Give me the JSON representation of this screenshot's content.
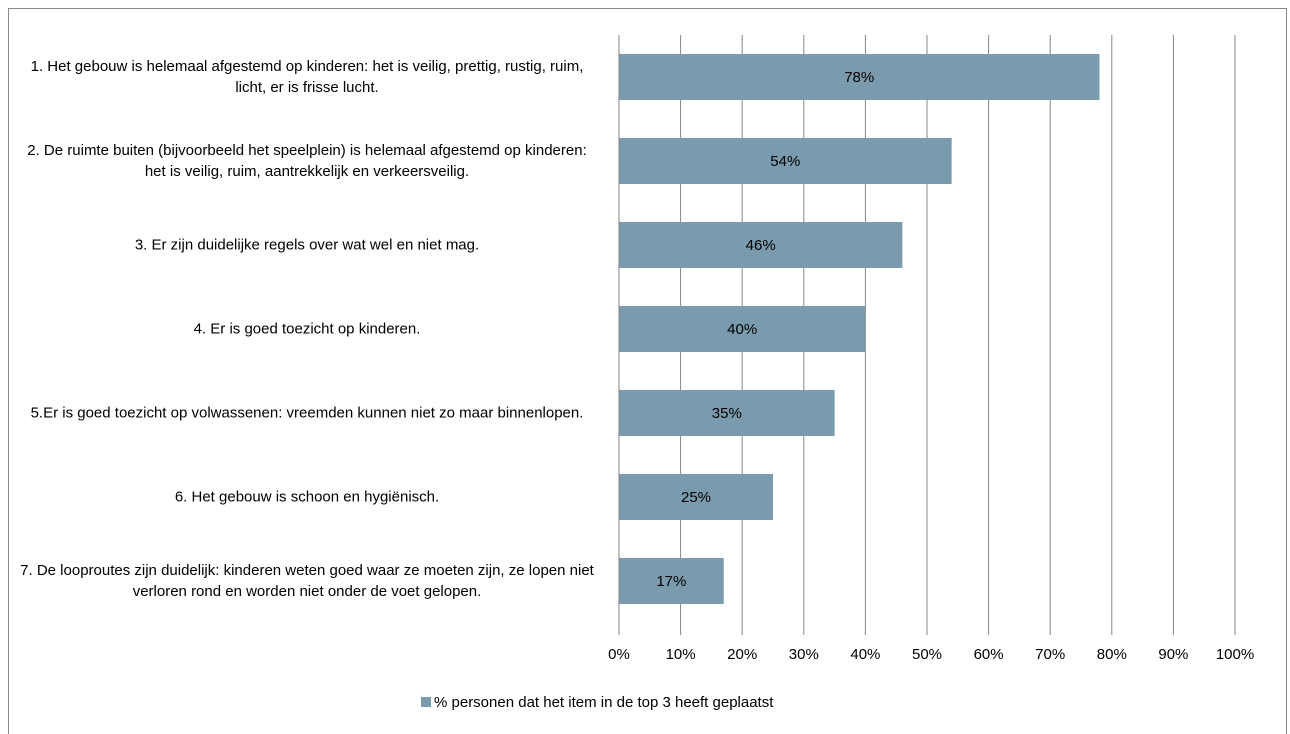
{
  "chart_data": {
    "type": "hbar",
    "categories": [
      "1. Het gebouw is helemaal afgestemd op kinderen: het is veilig, prettig, rustig, ruim, licht, er is frisse lucht.",
      "2. De ruimte buiten (bijvoorbeeld het speelplein) is helemaal afgestemd op kinderen: het is veilig, ruim, aantrekkelijk en verkeersveilig.",
      "3. Er zijn duidelijke regels over wat wel en niet mag.",
      "4. Er is goed toezicht op kinderen.",
      "5.Er is goed toezicht op volwassenen: vreemden kunnen niet zo maar binnenlopen.",
      "6. Het gebouw is schoon en hygiënisch.",
      "7. De looproutes zijn duidelijk: kinderen weten goed waar ze moeten zijn, ze lopen niet verloren rond en worden niet onder de voet gelopen."
    ],
    "series": [
      {
        "name": "% personen dat het item in de top 3 heeft geplaatst",
        "color": "#7a9bad",
        "values": [
          78,
          54,
          46,
          40,
          35,
          25,
          17
        ],
        "value_labels": [
          "78%",
          "54%",
          "46%",
          "40%",
          "35%",
          "25%",
          "17%"
        ]
      }
    ],
    "xlim": [
      0,
      100
    ],
    "xticks": [
      {
        "value": 0,
        "label": "0%"
      },
      {
        "value": 10,
        "label": "10%"
      },
      {
        "value": 20,
        "label": "20%"
      },
      {
        "value": 30,
        "label": "30%"
      },
      {
        "value": 40,
        "label": "40%"
      },
      {
        "value": 50,
        "label": "50%"
      },
      {
        "value": 60,
        "label": "60%"
      },
      {
        "value": 70,
        "label": "70%"
      },
      {
        "value": 80,
        "label": "80%"
      },
      {
        "value": 90,
        "label": "90%"
      },
      {
        "value": 100,
        "label": "100%"
      }
    ],
    "grid": true,
    "legend": "bottom"
  }
}
